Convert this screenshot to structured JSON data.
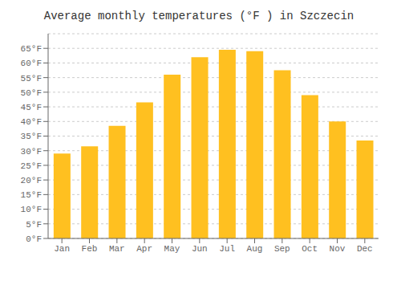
{
  "chart_data": {
    "type": "bar",
    "title": "Average monthly temperatures (°F ) in Szczecin",
    "categories": [
      "Jan",
      "Feb",
      "Mar",
      "Apr",
      "May",
      "Jun",
      "Jul",
      "Aug",
      "Sep",
      "Oct",
      "Nov",
      "Dec"
    ],
    "values": [
      29,
      31.5,
      38.5,
      46.5,
      56,
      62,
      64.5,
      64,
      57.5,
      49,
      40,
      33.5
    ],
    "color": "#FFC020",
    "ylim": [
      0,
      70
    ],
    "yticks": [
      {
        "value": 0,
        "label": "0°F"
      },
      {
        "value": 5,
        "label": "5°F"
      },
      {
        "value": 10,
        "label": "10°F"
      },
      {
        "value": 15,
        "label": "15°F"
      },
      {
        "value": 20,
        "label": "20°F"
      },
      {
        "value": 25,
        "label": "25°F"
      },
      {
        "value": 30,
        "label": "30°F"
      },
      {
        "value": 35,
        "label": "35°F"
      },
      {
        "value": 40,
        "label": "40°F"
      },
      {
        "value": 45,
        "label": "45°F"
      },
      {
        "value": 50,
        "label": "50°F"
      },
      {
        "value": 55,
        "label": "55°F"
      },
      {
        "value": 60,
        "label": "60°F"
      },
      {
        "value": 65,
        "label": "65°F"
      }
    ],
    "grid": true
  }
}
